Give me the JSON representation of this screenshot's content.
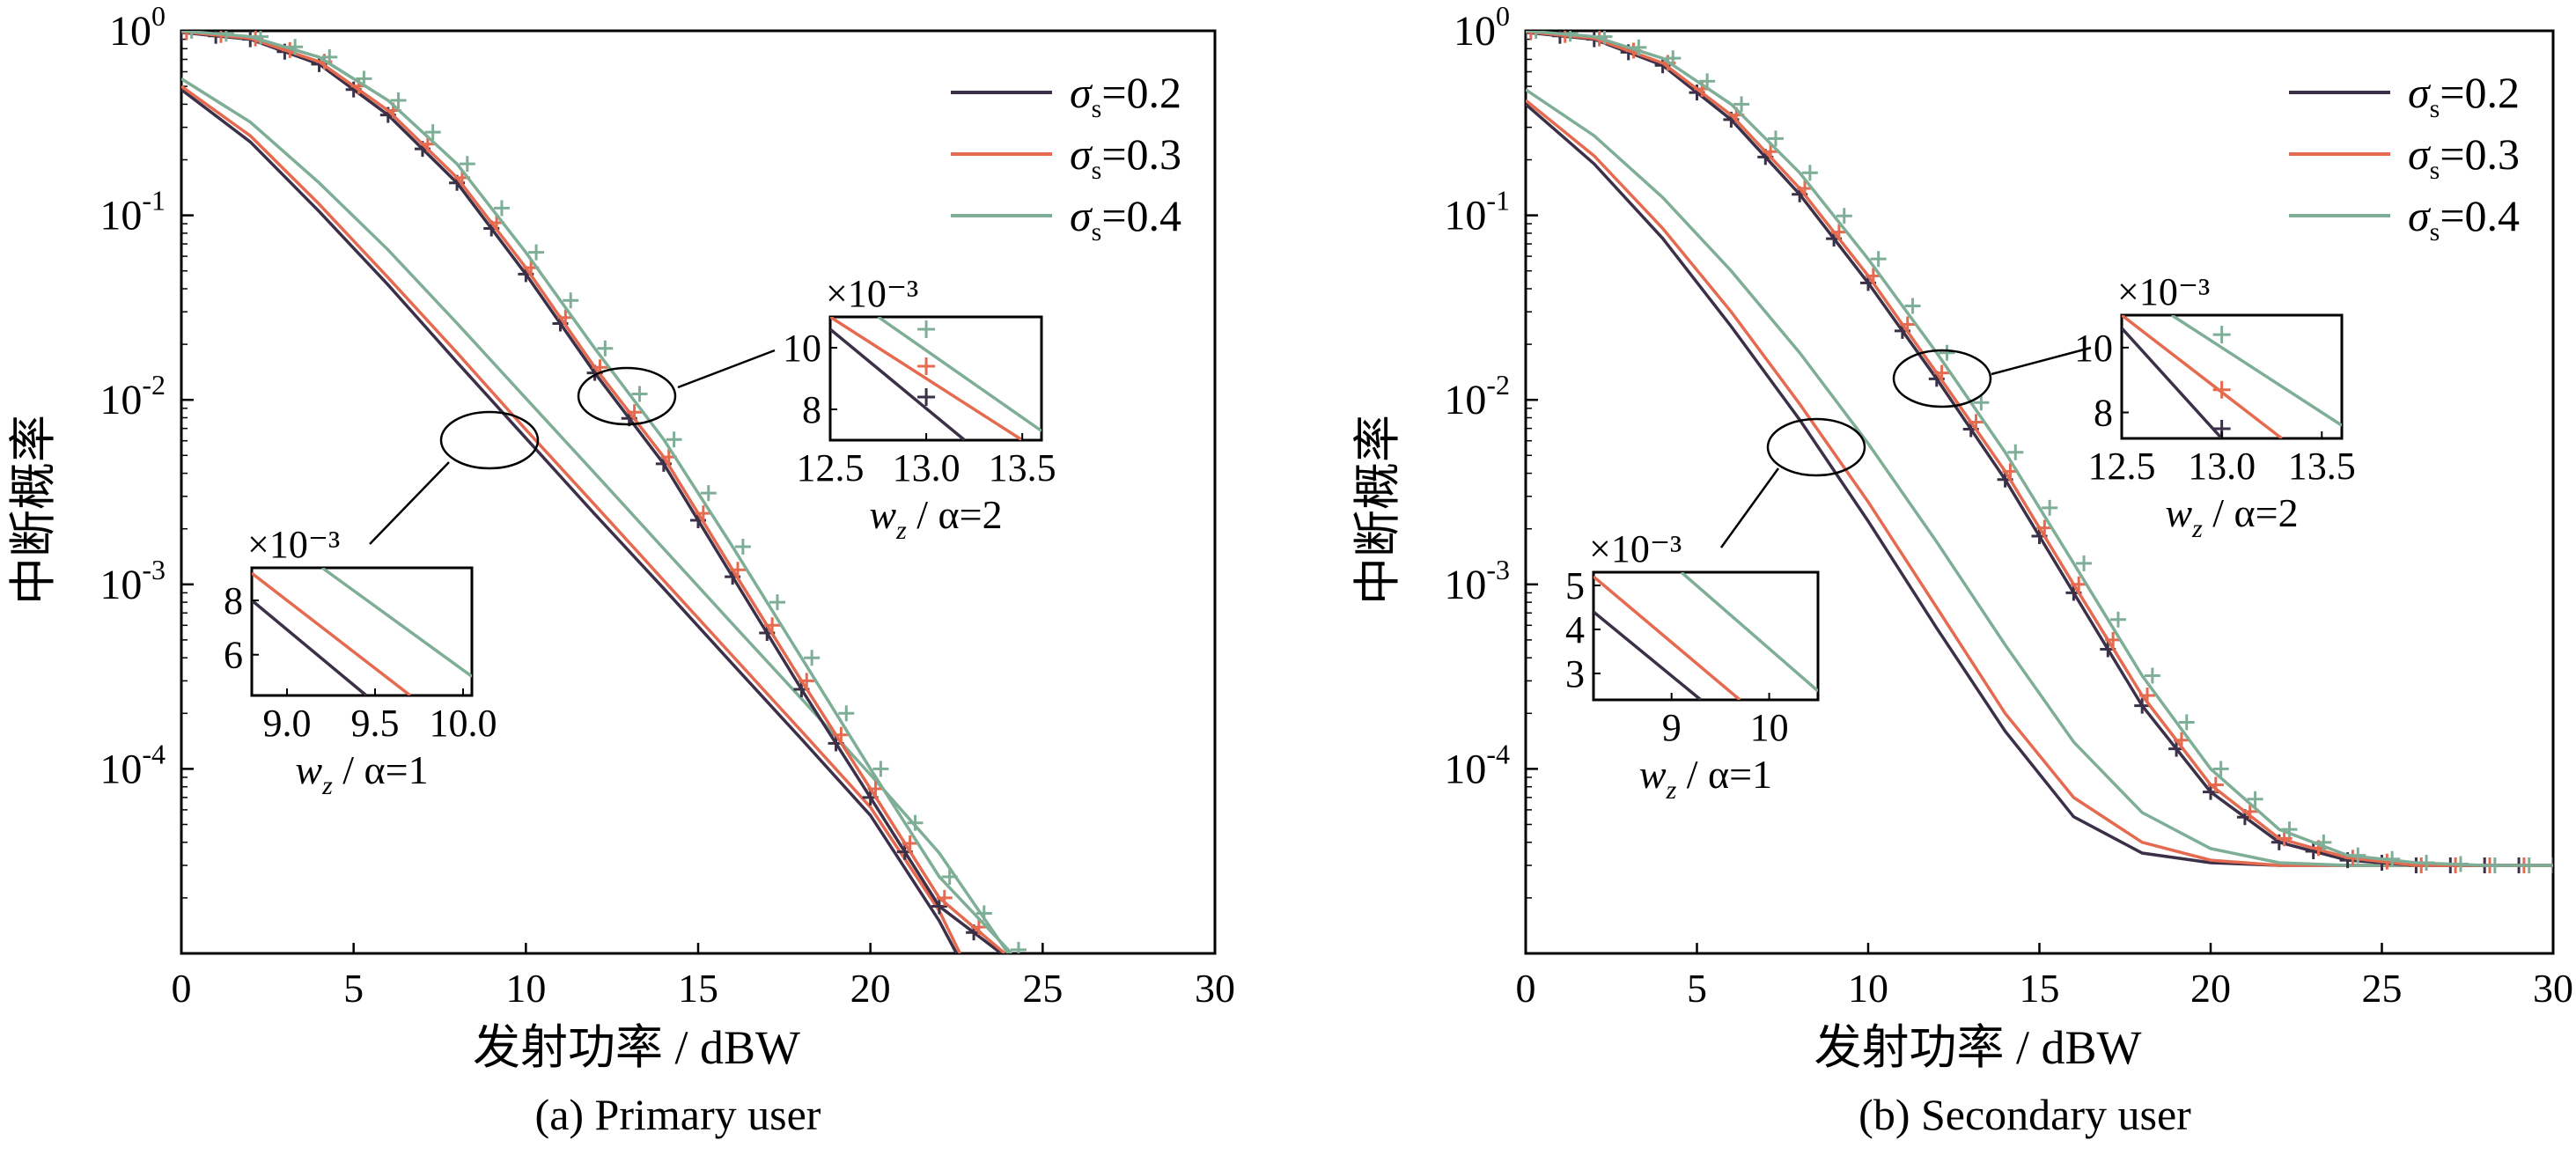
{
  "figure": {
    "colors": {
      "s02": "#3b3047",
      "s03": "#e56a4f",
      "s04": "#7fae97"
    },
    "chart_data": [
      {
        "type": "line",
        "caption": "(a) Primary user",
        "xlabel": "发射功率 / dBW",
        "ylabel": "中断概率",
        "xlim": [
          0,
          30
        ],
        "ylim": [
          1e-05,
          1
        ],
        "yscale": "log",
        "xticks": [
          "0",
          "5",
          "10",
          "15",
          "20",
          "25",
          "30"
        ],
        "yticks": [
          {
            "base": "10",
            "exp": "0"
          },
          {
            "base": "10",
            "exp": "-1"
          },
          {
            "base": "10",
            "exp": "-2"
          },
          {
            "base": "10",
            "exp": "-3"
          },
          {
            "base": "10",
            "exp": "-4"
          }
        ],
        "legend": {
          "position": "top-right",
          "entries": [
            "σs=0.2",
            "σs=0.3",
            "σs=0.4"
          ]
        },
        "groups": [
          {
            "label": "α=1",
            "series": [
              {
                "name": "σs=0.2",
                "x": [
                  0,
                  2,
                  4,
                  6,
                  8,
                  10,
                  12,
                  14,
                  16,
                  18,
                  20,
                  22,
                  22.5
                ],
                "y": [
                  0.48,
                  0.25,
                  0.105,
                  0.042,
                  0.016,
                  0.0062,
                  0.0024,
                  0.00095,
                  0.00037,
                  0.000145,
                  5.6e-05,
                  1.5e-05,
                  1e-05
                ]
              },
              {
                "name": "σs=0.3",
                "x": [
                  0,
                  2,
                  4,
                  6,
                  8,
                  10,
                  12,
                  14,
                  16,
                  18,
                  20,
                  22,
                  22.6
                ],
                "y": [
                  0.5,
                  0.27,
                  0.115,
                  0.046,
                  0.018,
                  0.0069,
                  0.0027,
                  0.00105,
                  0.00041,
                  0.00016,
                  6.2e-05,
                  1.7e-05,
                  1e-05
                ]
              },
              {
                "name": "σs=0.4",
                "x": [
                  0,
                  2,
                  4,
                  6,
                  8,
                  10,
                  12,
                  14,
                  16,
                  18,
                  20,
                  22,
                  24
                ],
                "y": [
                  0.55,
                  0.32,
                  0.15,
                  0.065,
                  0.026,
                  0.0102,
                  0.004,
                  0.00156,
                  0.00061,
                  0.00024,
                  9.3e-05,
                  3.5e-05,
                  1e-05
                ]
              }
            ]
          },
          {
            "label": "α=2",
            "series": [
              {
                "name": "σs=0.2",
                "x": [
                  0,
                  2,
                  4,
                  6,
                  8,
                  10,
                  12,
                  14,
                  16,
                  18,
                  20,
                  22,
                  23.8
                ],
                "y": [
                  0.98,
                  0.9,
                  0.66,
                  0.35,
                  0.15,
                  0.048,
                  0.014,
                  0.0045,
                  0.0011,
                  0.00027,
                  7e-05,
                  1.8e-05,
                  1e-05
                ]
              },
              {
                "name": "σs=0.3",
                "x": [
                  0,
                  2,
                  4,
                  6,
                  8,
                  10,
                  12,
                  14,
                  16,
                  18,
                  20,
                  22,
                  23.9
                ],
                "y": [
                  0.99,
                  0.91,
                  0.68,
                  0.37,
                  0.16,
                  0.052,
                  0.015,
                  0.0049,
                  0.0012,
                  0.0003,
                  7.8e-05,
                  2e-05,
                  1e-05
                ]
              },
              {
                "name": "σs=0.4",
                "x": [
                  0,
                  2,
                  4,
                  6,
                  8,
                  10,
                  12,
                  14,
                  16,
                  18,
                  20,
                  22,
                  24.1
                ],
                "y": [
                  1.0,
                  0.93,
                  0.72,
                  0.42,
                  0.19,
                  0.063,
                  0.019,
                  0.0061,
                  0.0016,
                  0.0004,
                  0.0001,
                  2.6e-05,
                  1e-05
                ]
              }
            ]
          }
        ],
        "annotations": [
          {
            "text": "α=1",
            "inset_tick_x": [
              "9.0",
              "9.5",
              "10.0"
            ],
            "inset_tick_y": [
              "6",
              "8"
            ],
            "inset_multiplier": "×10⁻³",
            "inset_xlabel": "wz"
          },
          {
            "text": "α=2",
            "inset_tick_x": [
              "12.5",
              "13.0",
              "13.5"
            ],
            "inset_tick_y": [
              "8",
              "10"
            ],
            "inset_multiplier": "×10⁻³",
            "inset_xlabel": "wz"
          }
        ]
      },
      {
        "type": "line",
        "caption": "(b) Secondary user",
        "xlabel": "发射功率 / dBW",
        "ylabel": "中断概率",
        "xlim": [
          0,
          30
        ],
        "ylim": [
          1e-05,
          1
        ],
        "yscale": "log",
        "xticks": [
          "0",
          "5",
          "10",
          "15",
          "20",
          "25",
          "30"
        ],
        "yticks": [
          {
            "base": "10",
            "exp": "0"
          },
          {
            "base": "10",
            "exp": "-1"
          },
          {
            "base": "10",
            "exp": "-2"
          },
          {
            "base": "10",
            "exp": "-3"
          },
          {
            "base": "10",
            "exp": "-4"
          }
        ],
        "legend": {
          "position": "top-right",
          "entries": [
            "σs=0.2",
            "σs=0.3",
            "σs=0.4"
          ]
        },
        "groups": [
          {
            "label": "α=1",
            "series": [
              {
                "name": "σs=0.2",
                "x": [
                  0,
                  2,
                  4,
                  6,
                  8,
                  10,
                  12,
                  14,
                  16,
                  18,
                  20,
                  22,
                  24,
                  26,
                  28,
                  30
                ],
                "y": [
                  0.4,
                  0.19,
                  0.075,
                  0.025,
                  0.0078,
                  0.0022,
                  0.00058,
                  0.00016,
                  5.5e-05,
                  3.5e-05,
                  3.1e-05,
                  3e-05,
                  3e-05,
                  3e-05,
                  3e-05,
                  3e-05
                ]
              },
              {
                "name": "σs=0.3",
                "x": [
                  0,
                  2,
                  4,
                  6,
                  8,
                  10,
                  12,
                  14,
                  16,
                  18,
                  20,
                  22,
                  24,
                  26,
                  28,
                  30
                ],
                "y": [
                  0.42,
                  0.21,
                  0.085,
                  0.03,
                  0.0095,
                  0.0028,
                  0.00075,
                  0.0002,
                  7e-05,
                  4e-05,
                  3.2e-05,
                  3e-05,
                  3e-05,
                  3e-05,
                  3e-05,
                  3e-05
                ]
              },
              {
                "name": "σs=0.4",
                "x": [
                  0,
                  2,
                  4,
                  6,
                  8,
                  10,
                  12,
                  14,
                  16,
                  18,
                  20,
                  22,
                  24,
                  26,
                  28,
                  30
                ],
                "y": [
                  0.48,
                  0.27,
                  0.125,
                  0.05,
                  0.018,
                  0.0058,
                  0.0017,
                  0.00047,
                  0.00014,
                  5.8e-05,
                  3.7e-05,
                  3.1e-05,
                  3e-05,
                  3e-05,
                  3e-05,
                  3e-05
                ]
              }
            ]
          },
          {
            "label": "α=2",
            "series": [
              {
                "name": "σs=0.2",
                "x": [
                  0,
                  2,
                  4,
                  6,
                  8,
                  10,
                  12,
                  14,
                  16,
                  18,
                  20,
                  22,
                  24,
                  26,
                  28,
                  30
                ],
                "y": [
                  0.98,
                  0.9,
                  0.65,
                  0.33,
                  0.13,
                  0.043,
                  0.013,
                  0.0037,
                  0.0009,
                  0.00022,
                  7.5e-05,
                  4e-05,
                  3.2e-05,
                  3e-05,
                  3e-05,
                  3e-05
                ]
              },
              {
                "name": "σs=0.3",
                "x": [
                  0,
                  2,
                  4,
                  6,
                  8,
                  10,
                  12,
                  14,
                  16,
                  18,
                  20,
                  22,
                  24,
                  26,
                  28,
                  30
                ],
                "y": [
                  0.99,
                  0.91,
                  0.67,
                  0.35,
                  0.14,
                  0.047,
                  0.014,
                  0.0041,
                  0.001,
                  0.00025,
                  8.2e-05,
                  4.2e-05,
                  3.3e-05,
                  3e-05,
                  3e-05,
                  3e-05
                ]
              },
              {
                "name": "σs=0.4",
                "x": [
                  0,
                  2,
                  4,
                  6,
                  8,
                  10,
                  12,
                  14,
                  16,
                  18,
                  20,
                  22,
                  24,
                  26,
                  28,
                  30
                ],
                "y": [
                  1.0,
                  0.93,
                  0.71,
                  0.4,
                  0.17,
                  0.058,
                  0.018,
                  0.0052,
                  0.0013,
                  0.00032,
                  0.0001,
                  4.7e-05,
                  3.4e-05,
                  3.1e-05,
                  3e-05,
                  3e-05
                ]
              }
            ]
          }
        ],
        "annotations": [
          {
            "text": "α=1",
            "inset_tick_x": [
              "9",
              "10"
            ],
            "inset_tick_y": [
              "3",
              "4",
              "5"
            ],
            "inset_multiplier": "×10⁻³",
            "inset_xlabel": "wz"
          },
          {
            "text": "α=2",
            "inset_tick_x": [
              "12.5",
              "13.0",
              "13.5"
            ],
            "inset_tick_y": [
              "8",
              "10"
            ],
            "inset_multiplier": "×10⁻³",
            "inset_xlabel": "wz"
          }
        ]
      }
    ]
  }
}
